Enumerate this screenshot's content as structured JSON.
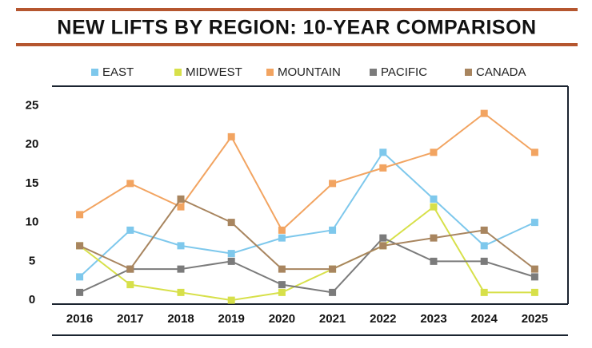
{
  "chart_data": {
    "type": "line",
    "title": "NEW LIFTS BY REGION: 10-YEAR COMPARISON",
    "categories": [
      "2016",
      "2017",
      "2018",
      "2019",
      "2020",
      "2021",
      "2022",
      "2023",
      "2024",
      "2025"
    ],
    "series": [
      {
        "name": "EAST",
        "color": "#7ec8ec",
        "values": [
          3,
          9,
          7,
          6,
          8,
          9,
          19,
          13,
          7,
          10
        ]
      },
      {
        "name": "MIDWEST",
        "color": "#d7e04a",
        "values": [
          7,
          2,
          1,
          0,
          1,
          4,
          7,
          12,
          1,
          1
        ]
      },
      {
        "name": "MOUNTAIN",
        "color": "#f2a461",
        "values": [
          11,
          15,
          12,
          21,
          9,
          15,
          17,
          19,
          24,
          19
        ]
      },
      {
        "name": "PACIFIC",
        "color": "#7b7b7b",
        "values": [
          1,
          4,
          4,
          5,
          2,
          1,
          8,
          5,
          5,
          3
        ]
      },
      {
        "name": "CANADA",
        "color": "#a8855f",
        "values": [
          7,
          4,
          13,
          10,
          4,
          4,
          7,
          8,
          9,
          4
        ]
      }
    ],
    "ylim": [
      -0.5,
      27.5
    ],
    "yticks": [
      0,
      5,
      10,
      15,
      20,
      25
    ],
    "grid": false
  }
}
